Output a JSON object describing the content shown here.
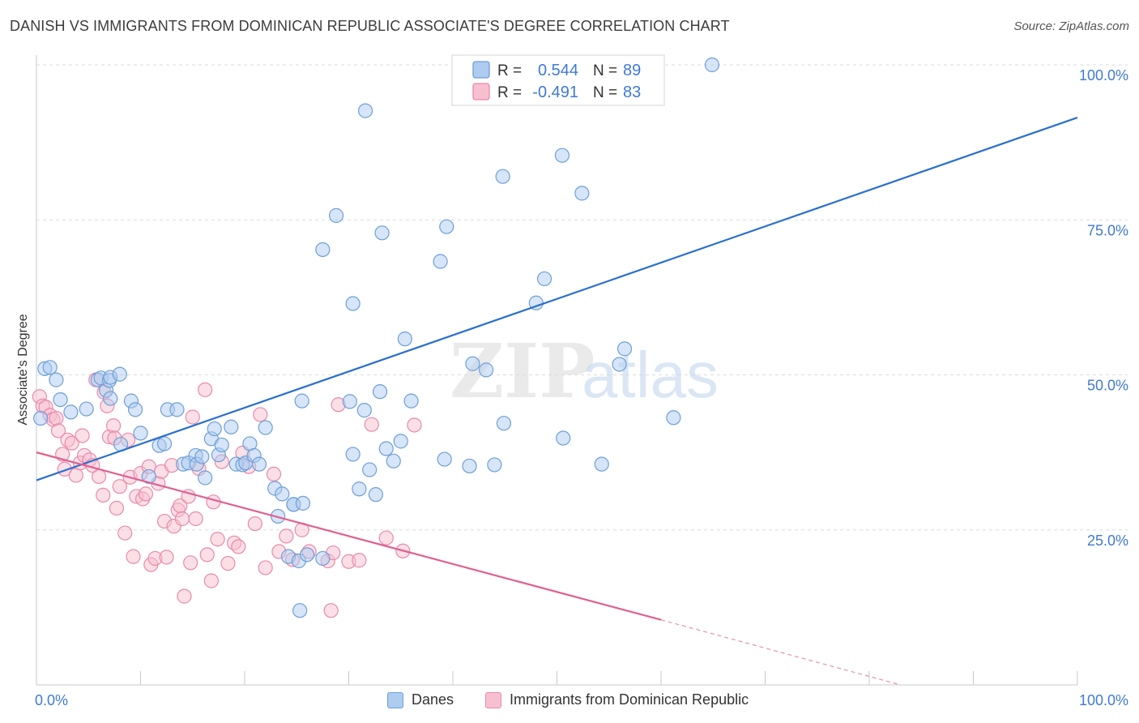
{
  "title": "DANISH VS IMMIGRANTS FROM DOMINICAN REPUBLIC ASSOCIATE'S DEGREE CORRELATION CHART",
  "source": "Source: ZipAtlas.com",
  "watermark": {
    "zip": "ZIP",
    "atlas": "atlas"
  },
  "colors": {
    "danes_fill": "#aecbf0",
    "danes_stroke": "#6f9fd8",
    "danes_line": "#2a6fcf",
    "dom_fill": "#f8bfd0",
    "dom_stroke": "#e98aaa",
    "dom_line": "#e0608f",
    "value_text": "#3f7ad4",
    "grid": "#dcdcdc"
  },
  "legend": {
    "r_label": "R =",
    "n_label": "N =",
    "rows": [
      {
        "r": "0.544",
        "n": "89"
      },
      {
        "r": "-0.491",
        "n": "83"
      }
    ]
  },
  "bottom_legend": [
    {
      "label": "Danes"
    },
    {
      "label": "Immigrants from Dominican Republic"
    }
  ],
  "chart_data": {
    "type": "scatter",
    "title": "DANISH VS IMMIGRANTS FROM DOMINICAN REPUBLIC ASSOCIATE'S DEGREE CORRELATION CHART",
    "xlabel": "",
    "ylabel": "Associate's Degree",
    "xlim": [
      0,
      100
    ],
    "ylim": [
      0,
      100
    ],
    "x_tick_labels": [
      "0.0%",
      "100.0%"
    ],
    "y_tick_labels": [
      "25.0%",
      "50.0%",
      "75.0%",
      "100.0%"
    ],
    "y_ticks": [
      25,
      50,
      75,
      100
    ],
    "grid": true,
    "legend_position": "top-center",
    "series": [
      {
        "name": "Danes",
        "r": 0.544,
        "n": 89,
        "trend": {
          "x0": 0,
          "y0": 33.0,
          "x1": 100,
          "y1": 91.5
        },
        "points": [
          [
            0.4,
            43
          ],
          [
            0.8,
            51
          ],
          [
            1.3,
            51.2
          ],
          [
            1.9,
            49.2
          ],
          [
            2.3,
            46
          ],
          [
            3.3,
            44
          ],
          [
            4.8,
            44.5
          ],
          [
            5.9,
            49.2
          ],
          [
            6.2,
            49.5
          ],
          [
            6.7,
            47.5
          ],
          [
            7.1,
            46.2
          ],
          [
            7.0,
            49.1
          ],
          [
            7.1,
            49.6
          ],
          [
            8.0,
            50.1
          ],
          [
            8.1,
            38.8
          ],
          [
            9.1,
            45.8
          ],
          [
            9.5,
            44.4
          ],
          [
            10.0,
            40.6
          ],
          [
            10.8,
            33.6
          ],
          [
            11.8,
            38.6
          ],
          [
            12.3,
            38.9
          ],
          [
            12.6,
            44.4
          ],
          [
            13.5,
            44.4
          ],
          [
            14.1,
            35.6
          ],
          [
            14.6,
            35.8
          ],
          [
            15.3,
            37.0
          ],
          [
            15.4,
            35.6
          ],
          [
            15.9,
            36.8
          ],
          [
            16.2,
            33.4
          ],
          [
            16.8,
            39.7
          ],
          [
            17.1,
            41.3
          ],
          [
            17.5,
            37.1
          ],
          [
            17.8,
            38.7
          ],
          [
            18.7,
            41.6
          ],
          [
            19.2,
            35.6
          ],
          [
            19.8,
            35.5
          ],
          [
            20.1,
            35.8
          ],
          [
            20.5,
            38.9
          ],
          [
            20.9,
            37.0
          ],
          [
            21.4,
            35.6
          ],
          [
            22.0,
            41.5
          ],
          [
            22.9,
            31.7
          ],
          [
            23.6,
            30.8
          ],
          [
            23.2,
            27.2
          ],
          [
            24.2,
            20.7
          ],
          [
            24.7,
            29.1
          ],
          [
            25.2,
            20.0
          ],
          [
            25.3,
            12.0
          ],
          [
            26.0,
            21.0
          ],
          [
            27.5,
            20.4
          ],
          [
            27.5,
            70.2
          ],
          [
            24.7,
            29.1
          ],
          [
            25.5,
            45.8
          ],
          [
            28.8,
            75.7
          ],
          [
            25.6,
            29.3
          ],
          [
            30.4,
            61.5
          ],
          [
            31.0,
            31.6
          ],
          [
            31.5,
            44.3
          ],
          [
            30.4,
            37.2
          ],
          [
            30.1,
            45.7
          ],
          [
            32.6,
            30.7
          ],
          [
            32.0,
            34.7
          ],
          [
            33.0,
            47.3
          ],
          [
            33.6,
            38.1
          ],
          [
            34.3,
            36.1
          ],
          [
            35.0,
            39.3
          ],
          [
            35.4,
            55.8
          ],
          [
            36.0,
            45.8
          ],
          [
            31.6,
            92.6
          ],
          [
            33.2,
            72.9
          ],
          [
            39.4,
            73.9
          ],
          [
            38.8,
            68.3
          ],
          [
            41.6,
            35.3
          ],
          [
            39.2,
            36.4
          ],
          [
            41.9,
            51.8
          ],
          [
            43.2,
            50.8
          ],
          [
            44.0,
            35.5
          ],
          [
            44.9,
            42.2
          ],
          [
            48.0,
            61.6
          ],
          [
            48.8,
            65.5
          ],
          [
            50.6,
            39.8
          ],
          [
            52.4,
            79.3
          ],
          [
            50.5,
            85.4
          ],
          [
            54.3,
            35.6
          ],
          [
            44.8,
            82.0
          ],
          [
            56.5,
            54.2
          ],
          [
            56.0,
            51.7
          ],
          [
            61.2,
            43.1
          ],
          [
            64.9,
            100
          ]
        ]
      },
      {
        "name": "Immigrants from Dominican Republic",
        "r": -0.491,
        "n": 83,
        "trend": {
          "x0": 0,
          "y0": 37.5,
          "x1": 60,
          "y1": 10.5
        },
        "trend_dashed": {
          "x0": 60,
          "y0": 10.5,
          "x1": 83,
          "y1": 0
        },
        "points": [
          [
            0.3,
            46.5
          ],
          [
            0.6,
            45.0
          ],
          [
            0.9,
            44.8
          ],
          [
            1.3,
            43.5
          ],
          [
            1.6,
            42.8
          ],
          [
            1.9,
            43.0
          ],
          [
            2.1,
            41.0
          ],
          [
            2.5,
            37.2
          ],
          [
            2.7,
            34.8
          ],
          [
            3.0,
            39.5
          ],
          [
            3.4,
            39.0
          ],
          [
            3.8,
            33.8
          ],
          [
            4.2,
            35.8
          ],
          [
            4.4,
            40.2
          ],
          [
            4.6,
            37.0
          ],
          [
            5.1,
            36.3
          ],
          [
            5.4,
            35.4
          ],
          [
            5.7,
            49.2
          ],
          [
            6.0,
            33.6
          ],
          [
            6.4,
            30.6
          ],
          [
            6.5,
            47.2
          ],
          [
            6.8,
            45.0
          ],
          [
            7.0,
            40.0
          ],
          [
            7.4,
            41.8
          ],
          [
            7.5,
            39.8
          ],
          [
            7.7,
            28.5
          ],
          [
            8.0,
            32.0
          ],
          [
            8.5,
            24.5
          ],
          [
            8.8,
            39.5
          ],
          [
            9.0,
            33.5
          ],
          [
            9.3,
            20.7
          ],
          [
            9.6,
            30.4
          ],
          [
            10.0,
            34.1
          ],
          [
            10.2,
            30.0
          ],
          [
            10.5,
            30.8
          ],
          [
            10.8,
            35.2
          ],
          [
            11.0,
            19.4
          ],
          [
            11.4,
            20.4
          ],
          [
            11.7,
            32.5
          ],
          [
            12.0,
            34.4
          ],
          [
            12.3,
            26.4
          ],
          [
            12.5,
            20.6
          ],
          [
            13.0,
            35.4
          ],
          [
            13.2,
            25.6
          ],
          [
            13.6,
            28.2
          ],
          [
            13.8,
            28.9
          ],
          [
            14.0,
            26.8
          ],
          [
            14.2,
            14.3
          ],
          [
            14.6,
            30.4
          ],
          [
            14.8,
            19.7
          ],
          [
            15.0,
            43.2
          ],
          [
            15.3,
            26.8
          ],
          [
            15.6,
            34.9
          ],
          [
            16.2,
            47.6
          ],
          [
            16.4,
            21.0
          ],
          [
            16.8,
            16.8
          ],
          [
            17.0,
            29.5
          ],
          [
            17.4,
            23.5
          ],
          [
            17.8,
            36.0
          ],
          [
            18.4,
            19.6
          ],
          [
            19.0,
            22.9
          ],
          [
            19.4,
            22.3
          ],
          [
            19.8,
            37.4
          ],
          [
            20.4,
            35.2
          ],
          [
            21.0,
            26.0
          ],
          [
            21.5,
            43.6
          ],
          [
            22.0,
            18.9
          ],
          [
            22.8,
            34.0
          ],
          [
            23.3,
            21.5
          ],
          [
            24.0,
            24.0
          ],
          [
            24.6,
            20.2
          ],
          [
            25.5,
            25.0
          ],
          [
            26.2,
            21.5
          ],
          [
            28.0,
            20.0
          ],
          [
            28.3,
            12.0
          ],
          [
            29.0,
            45.2
          ],
          [
            28.5,
            21.3
          ],
          [
            30.0,
            19.9
          ],
          [
            31.0,
            20.1
          ],
          [
            32.2,
            42.0
          ],
          [
            33.6,
            23.7
          ],
          [
            35.2,
            21.6
          ],
          [
            36.3,
            41.9
          ]
        ]
      }
    ]
  }
}
